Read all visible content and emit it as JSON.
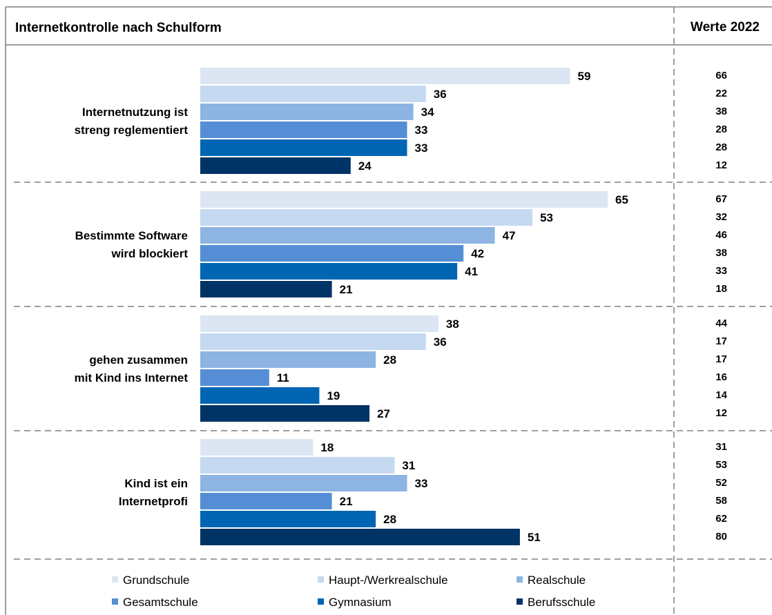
{
  "chart_data": {
    "type": "bar",
    "orientation": "horizontal",
    "title": "Internetkontrolle nach Schulform",
    "comparison_header": "Werte 2022",
    "categories": [
      [
        "Internetnutzung ist",
        "streng reglementiert"
      ],
      [
        "Bestimmte Software",
        "wird blockiert"
      ],
      [
        "gehen zusammen",
        "mit Kind ins Internet"
      ],
      [
        "Kind ist ein",
        "Internetprofi"
      ]
    ],
    "series": [
      {
        "name": "Grundschule",
        "color": "#dce6f2",
        "values": [
          59,
          65,
          38,
          18
        ],
        "values_2022": [
          66,
          67,
          44,
          31
        ]
      },
      {
        "name": "Haupt-/Werkrealschule",
        "color": "#c5d9f1",
        "values": [
          36,
          53,
          36,
          31
        ],
        "values_2022": [
          22,
          32,
          17,
          53
        ]
      },
      {
        "name": "Realschule",
        "color": "#8db4e2",
        "values": [
          34,
          47,
          28,
          33
        ],
        "values_2022": [
          38,
          46,
          17,
          52
        ]
      },
      {
        "name": "Gesamtschule",
        "color": "#558ed5",
        "values": [
          33,
          42,
          11,
          21
        ],
        "values_2022": [
          28,
          38,
          16,
          58
        ]
      },
      {
        "name": "Gymnasium",
        "color": "#0066b3",
        "values": [
          33,
          41,
          19,
          28
        ],
        "values_2022": [
          28,
          33,
          14,
          62
        ]
      },
      {
        "name": "Berufsschule",
        "color": "#003366",
        "values": [
          24,
          21,
          27,
          51
        ],
        "values_2022": [
          12,
          18,
          12,
          80
        ]
      }
    ],
    "xlim": [
      0,
      65
    ],
    "grid": false,
    "legend_position": "bottom"
  }
}
